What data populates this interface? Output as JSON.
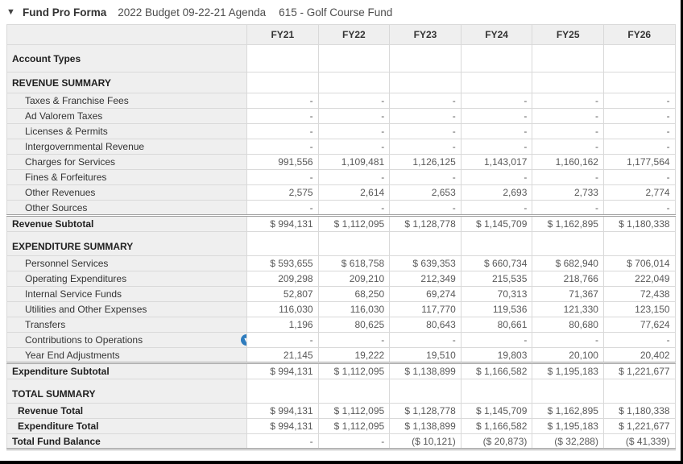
{
  "titlebar": {
    "collapse_caret": "▼",
    "title": "Fund Pro Forma",
    "budget_label": "2022 Budget 09-22-21 Agenda",
    "fund_label": "615 - Golf Course Fund"
  },
  "colors": {
    "accent_blue": "#2e7cbe",
    "label_column_bg": "#efefef",
    "grid_line": "#d9d9d9",
    "frame_border": "#000000"
  },
  "table": {
    "year_columns": [
      "FY21",
      "FY22",
      "FY23",
      "FY24",
      "FY25",
      "FY26"
    ],
    "rows": [
      {
        "type": "section-tall",
        "label": "Account Types",
        "values": [
          "",
          "",
          "",
          "",
          "",
          ""
        ]
      },
      {
        "type": "section",
        "label": "REVENUE SUMMARY",
        "values": [
          "",
          "",
          "",
          "",
          "",
          ""
        ]
      },
      {
        "type": "detail",
        "label": "Taxes & Franchise Fees",
        "values": [
          "-",
          "-",
          "-",
          "-",
          "-",
          "-"
        ]
      },
      {
        "type": "detail",
        "label": "Ad Valorem Taxes",
        "values": [
          "-",
          "-",
          "-",
          "-",
          "-",
          "-"
        ]
      },
      {
        "type": "detail",
        "label": "Licenses & Permits",
        "values": [
          "-",
          "-",
          "-",
          "-",
          "-",
          "-"
        ]
      },
      {
        "type": "detail",
        "label": "Intergovernmental Revenue",
        "values": [
          "-",
          "-",
          "-",
          "-",
          "-",
          "-"
        ]
      },
      {
        "type": "detail",
        "label": "Charges for Services",
        "values": [
          "991,556",
          "1,109,481",
          "1,126,125",
          "1,143,017",
          "1,160,162",
          "1,177,564"
        ]
      },
      {
        "type": "detail",
        "label": "Fines & Forfeitures",
        "values": [
          "-",
          "-",
          "-",
          "-",
          "-",
          "-"
        ]
      },
      {
        "type": "detail",
        "label": "Other Revenues",
        "values": [
          "2,575",
          "2,614",
          "2,653",
          "2,693",
          "2,733",
          "2,774"
        ]
      },
      {
        "type": "detail",
        "label": "Other Sources",
        "values": [
          "-",
          "-",
          "-",
          "-",
          "-",
          "-"
        ]
      },
      {
        "type": "subtotal",
        "label": "Revenue Subtotal",
        "values": [
          "$ 994,131",
          "$ 1,112,095",
          "$ 1,128,778",
          "$ 1,145,709",
          "$ 1,162,895",
          "$ 1,180,338"
        ]
      },
      {
        "type": "section-spaced",
        "label": "EXPENDITURE SUMMARY",
        "values": [
          "",
          "",
          "",
          "",
          "",
          ""
        ]
      },
      {
        "type": "detail",
        "label": "Personnel Services",
        "values": [
          "$ 593,655",
          "$ 618,758",
          "$ 639,353",
          "$ 660,734",
          "$ 682,940",
          "$ 706,014"
        ]
      },
      {
        "type": "detail",
        "label": "Operating Expenditures",
        "values": [
          "209,298",
          "209,210",
          "212,349",
          "215,535",
          "218,766",
          "222,049"
        ]
      },
      {
        "type": "detail",
        "label": "Internal Service Funds",
        "values": [
          "52,807",
          "68,250",
          "69,274",
          "70,313",
          "71,367",
          "72,438"
        ]
      },
      {
        "type": "detail",
        "label": "Utilities and Other Expenses",
        "values": [
          "116,030",
          "116,030",
          "117,770",
          "119,536",
          "121,330",
          "123,150"
        ]
      },
      {
        "type": "detail",
        "label": "Transfers",
        "values": [
          "1,196",
          "80,625",
          "80,643",
          "80,661",
          "80,680",
          "77,624"
        ]
      },
      {
        "type": "detail",
        "label": "Contributions to Operations",
        "icon": "chevron-down-circle",
        "values": [
          "-",
          "-",
          "-",
          "-",
          "-",
          "-"
        ]
      },
      {
        "type": "detail",
        "label": "Year End Adjustments",
        "values": [
          "21,145",
          "19,222",
          "19,510",
          "19,803",
          "20,100",
          "20,402"
        ]
      },
      {
        "type": "subtotal",
        "label": "Expenditure Subtotal",
        "values": [
          "$ 994,131",
          "$ 1,112,095",
          "$ 1,138,899",
          "$ 1,166,582",
          "$ 1,195,183",
          "$ 1,221,677"
        ]
      },
      {
        "type": "section-spaced",
        "label": "TOTAL SUMMARY",
        "values": [
          "",
          "",
          "",
          "",
          "",
          ""
        ]
      },
      {
        "type": "total",
        "label": "Revenue Total",
        "values": [
          "$ 994,131",
          "$ 1,112,095",
          "$ 1,128,778",
          "$ 1,145,709",
          "$ 1,162,895",
          "$ 1,180,338"
        ]
      },
      {
        "type": "total",
        "label": "Expenditure Total",
        "values": [
          "$ 994,131",
          "$ 1,112,095",
          "$ 1,138,899",
          "$ 1,166,582",
          "$ 1,195,183",
          "$ 1,221,677"
        ]
      },
      {
        "type": "grand",
        "label": "Total Fund Balance",
        "values": [
          "-",
          "-",
          "($ 10,121)",
          "($ 20,873)",
          "($ 32,288)",
          "($ 41,339)"
        ]
      }
    ]
  }
}
